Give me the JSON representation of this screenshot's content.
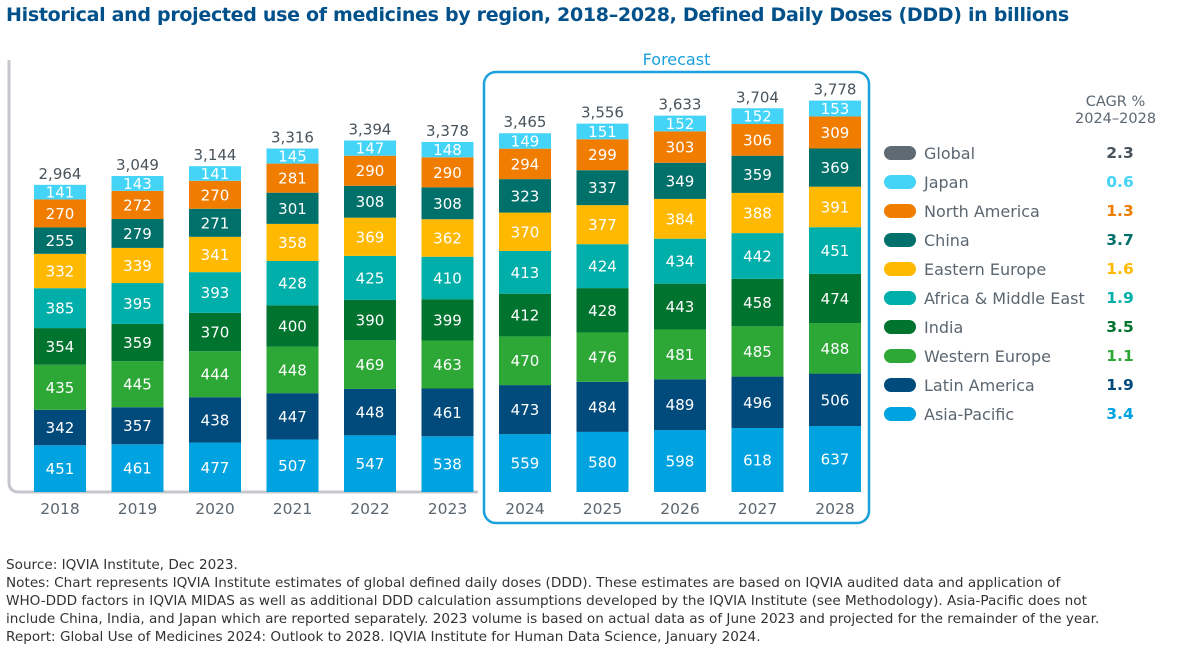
{
  "title": "Historical and projected use of medicines by region, 2018–2028, Defined Daily Doses (DDD) in billions",
  "chart_data": {
    "type": "bar",
    "stacked": true,
    "categories": [
      "2018",
      "2019",
      "2020",
      "2021",
      "2022",
      "2023",
      "2024",
      "2025",
      "2026",
      "2027",
      "2028"
    ],
    "forecast_label": "Forecast",
    "forecast_categories": [
      "2024",
      "2025",
      "2026",
      "2027",
      "2028"
    ],
    "totals": [
      "2,964",
      "3,049",
      "3,144",
      "3,316",
      "3,394",
      "3,378",
      "3,465",
      "3,556",
      "3,633",
      "3,704",
      "3,778"
    ],
    "series": [
      {
        "name": "Asia-Pacific",
        "color": "#00a3e0",
        "values": [
          451,
          461,
          477,
          507,
          547,
          538,
          559,
          580,
          598,
          618,
          637
        ]
      },
      {
        "name": "Latin America",
        "color": "#004a7c",
        "values": [
          342,
          357,
          438,
          447,
          448,
          461,
          473,
          484,
          489,
          496,
          506
        ]
      },
      {
        "name": "Western Europe",
        "color": "#2da836",
        "values": [
          435,
          445,
          444,
          448,
          469,
          463,
          470,
          476,
          481,
          485,
          488
        ]
      },
      {
        "name": "India",
        "color": "#00732e",
        "values": [
          354,
          359,
          370,
          400,
          390,
          399,
          412,
          428,
          443,
          458,
          474
        ]
      },
      {
        "name": "Africa & Middle East",
        "color": "#00afaa",
        "values": [
          385,
          395,
          393,
          428,
          425,
          410,
          413,
          424,
          434,
          442,
          451
        ]
      },
      {
        "name": "Eastern Europe",
        "color": "#ffb900",
        "values": [
          332,
          339,
          341,
          358,
          369,
          362,
          370,
          377,
          384,
          388,
          391
        ]
      },
      {
        "name": "China",
        "color": "#00706a",
        "values": [
          255,
          279,
          271,
          301,
          308,
          308,
          323,
          337,
          349,
          359,
          369
        ]
      },
      {
        "name": "North America",
        "color": "#f07d00",
        "values": [
          270,
          272,
          270,
          281,
          290,
          290,
          294,
          299,
          303,
          306,
          309
        ]
      },
      {
        "name": "Japan",
        "color": "#44d4f8",
        "values": [
          141,
          143,
          141,
          145,
          147,
          148,
          149,
          151,
          152,
          152,
          153
        ]
      }
    ],
    "ylim": [
      0,
      4000
    ],
    "grid": false,
    "legend_position": "right"
  },
  "legend": {
    "cagr_header_line1": "CAGR %",
    "cagr_header_line2": "2024–2028",
    "items": [
      {
        "label": "Global",
        "color": "#5f6a72",
        "cagr": "2.3",
        "cagr_color": "#4a545c"
      },
      {
        "label": "Japan",
        "color": "#44d4f8",
        "cagr": "0.6",
        "cagr_color": "#44d4f8"
      },
      {
        "label": "North America",
        "color": "#f07d00",
        "cagr": "1.3",
        "cagr_color": "#f07d00"
      },
      {
        "label": "China",
        "color": "#00706a",
        "cagr": "3.7",
        "cagr_color": "#00706a"
      },
      {
        "label": "Eastern Europe",
        "color": "#ffb900",
        "cagr": "1.6",
        "cagr_color": "#ffb900"
      },
      {
        "label": "Africa & Middle East",
        "color": "#00afaa",
        "cagr": "1.9",
        "cagr_color": "#00afaa"
      },
      {
        "label": "India",
        "color": "#00732e",
        "cagr": "3.5",
        "cagr_color": "#00732e"
      },
      {
        "label": "Western Europe",
        "color": "#2da836",
        "cagr": "1.1",
        "cagr_color": "#2da836"
      },
      {
        "label": "Latin America",
        "color": "#004a7c",
        "cagr": "1.9",
        "cagr_color": "#004a7c"
      },
      {
        "label": "Asia-Pacific",
        "color": "#00a3e0",
        "cagr": "3.4",
        "cagr_color": "#00a3e0"
      }
    ]
  },
  "notes": [
    "Source: IQVIA Institute, Dec 2023.",
    "Notes: Chart represents IQVIA Institute estimates of global defined daily doses (DDD). These estimates are based on IQVIA audited data and application of",
    "WHO-DDD factors in IQVIA MIDAS as well as additional DDD calculation assumptions developed by the IQVIA Institute (see Methodology). Asia-Pacific does not",
    "include China, India, and Japan which are reported separately. 2023 volume is based on actual data as of June 2023 and projected for the remainder of the year.",
    "Report: Global Use of Medicines 2024: Outlook to 2028. IQVIA Institute for Human Data Science, January 2024."
  ]
}
